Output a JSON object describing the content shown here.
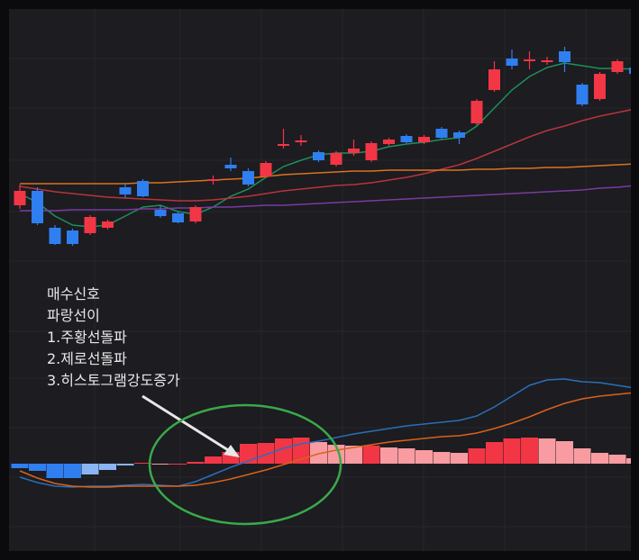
{
  "chart_data": [
    {
      "type": "candlestick",
      "ylim": [
        0,
        300
      ],
      "up_color": "#f23645",
      "down_color": "#2f7ff0",
      "open": [
        72,
        88,
        47,
        44,
        41,
        47,
        92,
        99,
        67,
        63,
        54,
        99,
        117,
        110,
        104,
        138,
        142,
        131,
        117,
        130,
        122,
        140,
        149,
        142,
        157,
        153,
        163,
        200,
        235,
        232,
        231,
        243,
        206,
        190,
        220,
        225
      ],
      "close": [
        88,
        52,
        29,
        29,
        59,
        54,
        84,
        82,
        60,
        53,
        70,
        101,
        113,
        95,
        119,
        140,
        144,
        122,
        130,
        135,
        141,
        145,
        142,
        148,
        147,
        147,
        188,
        223,
        227,
        234,
        233,
        231,
        184,
        218,
        232,
        218
      ],
      "high": [
        95,
        92,
        50,
        46,
        61,
        56,
        96,
        101,
        72,
        65,
        72,
        105,
        125,
        113,
        121,
        157,
        150,
        133,
        132,
        145,
        143,
        147,
        151,
        150,
        159,
        155,
        190,
        232,
        245,
        243,
        237,
        248,
        208,
        220,
        234,
        229
      ],
      "low": [
        68,
        50,
        28,
        27,
        39,
        45,
        80,
        81,
        58,
        52,
        52,
        95,
        110,
        93,
        102,
        135,
        138,
        120,
        115,
        127,
        120,
        138,
        141,
        140,
        145,
        140,
        161,
        198,
        223,
        223,
        228,
        220,
        182,
        188,
        218,
        215
      ],
      "series": [
        {
          "color": "#1f8f5a",
          "values": [
            85,
            75,
            60,
            50,
            48,
            50,
            60,
            70,
            72,
            65,
            62,
            70,
            82,
            90,
            103,
            115,
            122,
            128,
            130,
            130,
            132,
            137,
            140,
            142,
            145,
            147,
            160,
            180,
            200,
            215,
            225,
            230,
            227,
            224,
            224,
            223
          ]
        },
        {
          "color": "#b8343c",
          "values": [
            93,
            90,
            87,
            85,
            83,
            81,
            80,
            79,
            78,
            77,
            77,
            78,
            80,
            82,
            85,
            88,
            90,
            92,
            94,
            95,
            97,
            100,
            103,
            107,
            112,
            117,
            124,
            132,
            140,
            148,
            155,
            160,
            166,
            171,
            175,
            179
          ]
        },
        {
          "color": "#d9741c",
          "values": [
            96,
            96,
            96,
            96,
            96,
            96,
            96,
            97,
            97,
            98,
            99,
            100,
            101,
            102,
            104,
            106,
            107,
            108,
            109,
            110,
            110,
            111,
            111,
            111,
            111,
            111,
            112,
            112,
            113,
            113,
            114,
            114,
            115,
            116,
            117,
            118
          ]
        },
        {
          "color": "#7b3aa0",
          "values": [
            66,
            66,
            66,
            67,
            67,
            67,
            67,
            68,
            68,
            69,
            69,
            70,
            70,
            71,
            72,
            72,
            73,
            74,
            75,
            76,
            77,
            78,
            79,
            80,
            81,
            82,
            83,
            84,
            85,
            86,
            87,
            88,
            89,
            91,
            92,
            94
          ]
        }
      ]
    },
    {
      "type": "macd",
      "ylim": [
        -97,
        215
      ],
      "histogram": [
        -5,
        -8,
        -16,
        -16,
        -12,
        -7,
        -2,
        1,
        0,
        0,
        2,
        8,
        13,
        22,
        23,
        28,
        29,
        24,
        21,
        20,
        20,
        18,
        17,
        15,
        13,
        12,
        17,
        24,
        28,
        29,
        28,
        25,
        17,
        12,
        10,
        6
      ],
      "histogram_colors": {
        "pos_up": "#f23645",
        "pos_down": "#f99ca1",
        "neg_down": "#2f7ff0",
        "neg_up": "#8ab4f3"
      },
      "series": [
        {
          "color": "#2a6fb8",
          "values": [
            -15,
            -21,
            -25,
            -26,
            -25,
            -25,
            -24,
            -23,
            -24,
            -25,
            -20,
            -12,
            -4,
            3,
            10,
            17,
            22,
            25,
            29,
            33,
            36,
            39,
            42,
            44,
            46,
            48,
            53,
            63,
            75,
            87,
            93,
            94,
            91,
            90,
            87,
            84
          ]
        },
        {
          "color": "#d9621c",
          "values": [
            -8,
            -16,
            -22,
            -25,
            -26,
            -26,
            -25,
            -25,
            -25,
            -25,
            -24,
            -21,
            -17,
            -12,
            -7,
            -1,
            5,
            11,
            15,
            18,
            21,
            24,
            26,
            28,
            30,
            31,
            34,
            39,
            45,
            52,
            60,
            67,
            72,
            75,
            77,
            79
          ]
        }
      ]
    }
  ],
  "annotation": [
    "매수신호",
    "파랑선이",
    "1.주황선돌파",
    "2.제로선돌파",
    "3.히스토그램강도증가"
  ]
}
